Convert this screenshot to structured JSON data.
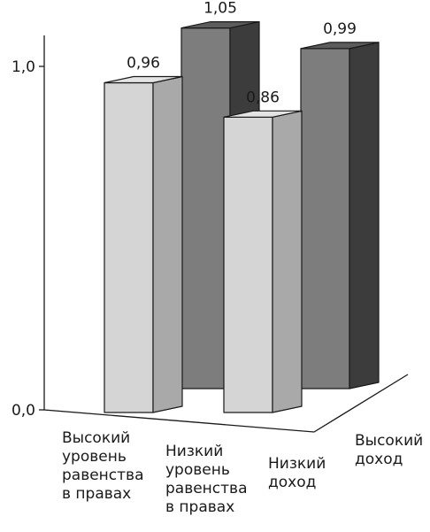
{
  "chart_data": {
    "type": "bar",
    "variant": "3d-grouped",
    "y_ticks": [
      {
        "value": 0.0,
        "label": "0,0"
      },
      {
        "value": 1.0,
        "label": "1,0"
      }
    ],
    "x_categories": [
      {
        "id": "high_equality",
        "lines": [
          "Высокий",
          "уровень",
          "равенства",
          "в правах"
        ]
      },
      {
        "id": "low_equality",
        "lines": [
          "Низкий",
          "уровень",
          "равенства",
          "в правах"
        ]
      }
    ],
    "z_categories": [
      {
        "id": "low_income",
        "lines": [
          "Низкий",
          "доход"
        ]
      },
      {
        "id": "high_income",
        "lines": [
          "Высокий",
          "доход"
        ]
      }
    ],
    "bars": [
      {
        "x": "high_equality",
        "z": "high_income",
        "value": 1.05,
        "label": "1,05"
      },
      {
        "x": "low_equality",
        "z": "high_income",
        "value": 0.99,
        "label": "0,99"
      },
      {
        "x": "high_equality",
        "z": "low_income",
        "value": 0.96,
        "label": "0,96"
      },
      {
        "x": "low_equality",
        "z": "low_income",
        "value": 0.86,
        "label": "0,86"
      }
    ],
    "colors": {
      "low_income": {
        "front": "#d5d5d5",
        "side": "#a9a9a9",
        "top": "#e4e4e4"
      },
      "high_income": {
        "front": "#7d7d7d",
        "side": "#3c3c3c",
        "top": "#5c5c5c"
      }
    },
    "grid": false,
    "legend": "none"
  }
}
